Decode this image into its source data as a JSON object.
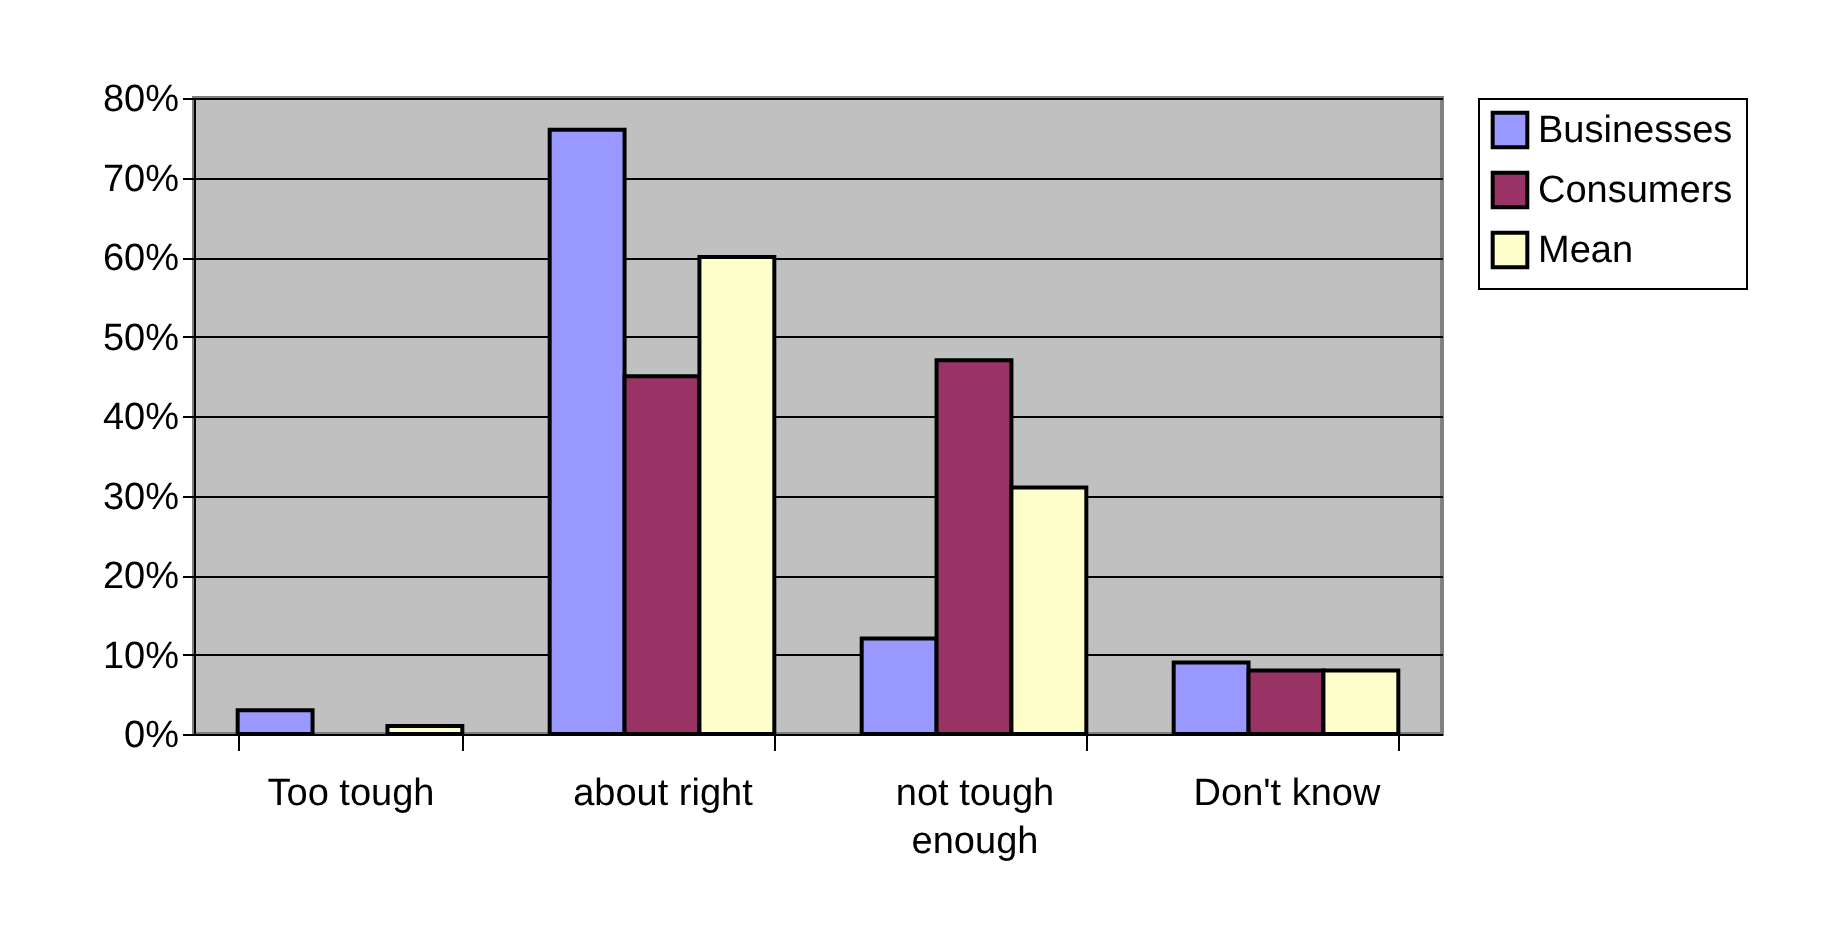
{
  "chart_data": {
    "type": "bar",
    "categories": [
      "Too tough",
      "about right",
      "not tough enough",
      "Don't know"
    ],
    "series": [
      {
        "name": "Businesses",
        "color": "#9999ff",
        "values": [
          3,
          76,
          12,
          9
        ]
      },
      {
        "name": "Consumers",
        "color": "#993366",
        "values": [
          null,
          45,
          47,
          8
        ]
      },
      {
        "name": "Mean",
        "color": "#ffffcc",
        "values": [
          1,
          60,
          31,
          8
        ]
      }
    ],
    "ylim": [
      0,
      80
    ],
    "yticks": [
      {
        "value": 0,
        "label": "0%"
      },
      {
        "value": 10,
        "label": "10%"
      },
      {
        "value": 20,
        "label": "20%"
      },
      {
        "value": 30,
        "label": "30%"
      },
      {
        "value": 40,
        "label": "40%"
      },
      {
        "value": 50,
        "label": "50%"
      },
      {
        "value": 60,
        "label": "60%"
      },
      {
        "value": 70,
        "label": "70%"
      },
      {
        "value": 80,
        "label": "80%"
      }
    ],
    "grid": "y",
    "legend": "right"
  }
}
